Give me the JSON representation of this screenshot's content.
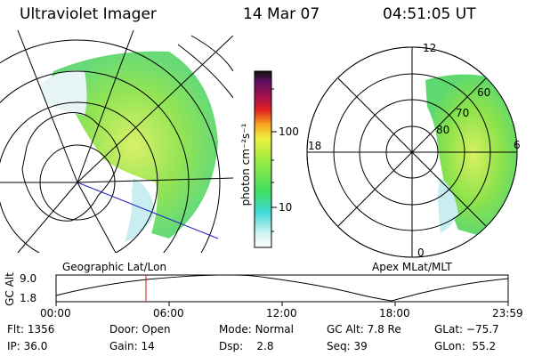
{
  "header": {
    "instrument": "Ultraviolet Imager",
    "date": "14 Mar 07",
    "time": "04:51:05 UT"
  },
  "colorbar": {
    "unit": "photon cm⁻²s⁻¹",
    "ticks": [
      "100",
      "10"
    ]
  },
  "left_map": {
    "caption": "Geographic Lat/Lon"
  },
  "right_map": {
    "caption": "Apex MLat/MLT",
    "mlt_labels": {
      "top": "12",
      "left": "18",
      "right": "6",
      "bottom": "0"
    },
    "lat_labels": [
      "60",
      "70",
      "80"
    ]
  },
  "altitude_plot": {
    "ylabel": "GC Alt",
    "yticks": [
      "9.0",
      "1.8"
    ],
    "xticks": [
      "00:00",
      "06:00",
      "12:00",
      "18:00",
      "23:59"
    ],
    "marker_time": "04:51:05"
  },
  "status": {
    "row1": [
      {
        "label": "Flt:",
        "value": "1356"
      },
      {
        "label": "Door:",
        "value": "Open"
      },
      {
        "label": "Mode:",
        "value": "Normal"
      },
      {
        "label": "GC Alt:",
        "value": "7.8 Re"
      },
      {
        "label": "GLat:",
        "value": "−75.7"
      }
    ],
    "row2": [
      {
        "label": "IP:",
        "value": "36.0"
      },
      {
        "label": "Gain:",
        "value": "14"
      },
      {
        "label": "Dsp:",
        "value": "2.8"
      },
      {
        "label": "Seq:",
        "value": "39"
      },
      {
        "label": "GLon:",
        "value": "55.2"
      }
    ]
  },
  "colors": {
    "aurora_green": "#7fe04a",
    "aurora_yellow": "#c8f050",
    "marker_red": "#e01010",
    "track_blue": "#2020c0"
  }
}
